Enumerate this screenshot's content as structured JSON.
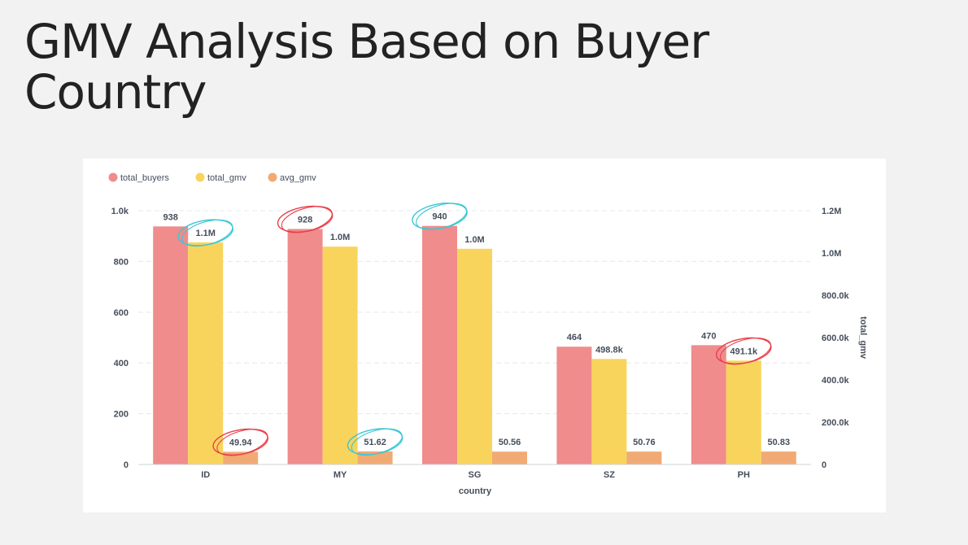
{
  "page": {
    "title": "GMV Analysis Based on Buyer Country"
  },
  "chart_data": {
    "type": "bar",
    "xlabel": "country",
    "y2label": "total_gmv",
    "categories": [
      "ID",
      "MY",
      "SG",
      "SZ",
      "PH"
    ],
    "series": [
      {
        "name": "total_buyers",
        "axis": "left",
        "color": "#f08c8c",
        "values": [
          938,
          928,
          940,
          464,
          470
        ],
        "labels": [
          "938",
          "928",
          "940",
          "464",
          "470"
        ]
      },
      {
        "name": "total_gmv",
        "axis": "right",
        "color": "#f8d45c",
        "values": [
          1050000,
          1030000,
          1020000,
          498800,
          491100
        ],
        "labels": [
          "1.1M",
          "1.0M",
          "1.0M",
          "498.8k",
          "491.1k"
        ]
      },
      {
        "name": "avg_gmv",
        "axis": "left",
        "color": "#f1aa74",
        "values": [
          49.94,
          51.62,
          50.56,
          50.76,
          50.83
        ],
        "labels": [
          "49.94",
          "51.62",
          "50.56",
          "50.76",
          "50.83"
        ]
      }
    ],
    "y_left": {
      "min": 0,
      "max": 1000,
      "ticks": [
        0,
        200,
        400,
        600,
        800,
        1000
      ],
      "tick_labels": [
        "0",
        "200",
        "400",
        "600",
        "800",
        "1.0k"
      ]
    },
    "y_right": {
      "min": 0,
      "max": 1200000,
      "ticks": [
        0,
        200000,
        400000,
        600000,
        800000,
        1000000,
        1200000
      ],
      "tick_labels": [
        "0",
        "200.0k",
        "400.0k",
        "600.0k",
        "800.0k",
        "1.0M",
        "1.2M"
      ]
    },
    "grid": true,
    "legend": "top-left",
    "annotations": [
      {
        "series": "total_gmv",
        "category": "ID",
        "color": "#3bc7d6"
      },
      {
        "series": "avg_gmv",
        "category": "ID",
        "color": "#e8404a"
      },
      {
        "series": "total_buyers",
        "category": "MY",
        "color": "#e8404a"
      },
      {
        "series": "avg_gmv",
        "category": "MY",
        "color": "#3bc7d6"
      },
      {
        "series": "total_buyers",
        "category": "SG",
        "color": "#3bc7d6"
      },
      {
        "series": "total_gmv",
        "category": "PH",
        "color": "#e8404a"
      }
    ]
  }
}
